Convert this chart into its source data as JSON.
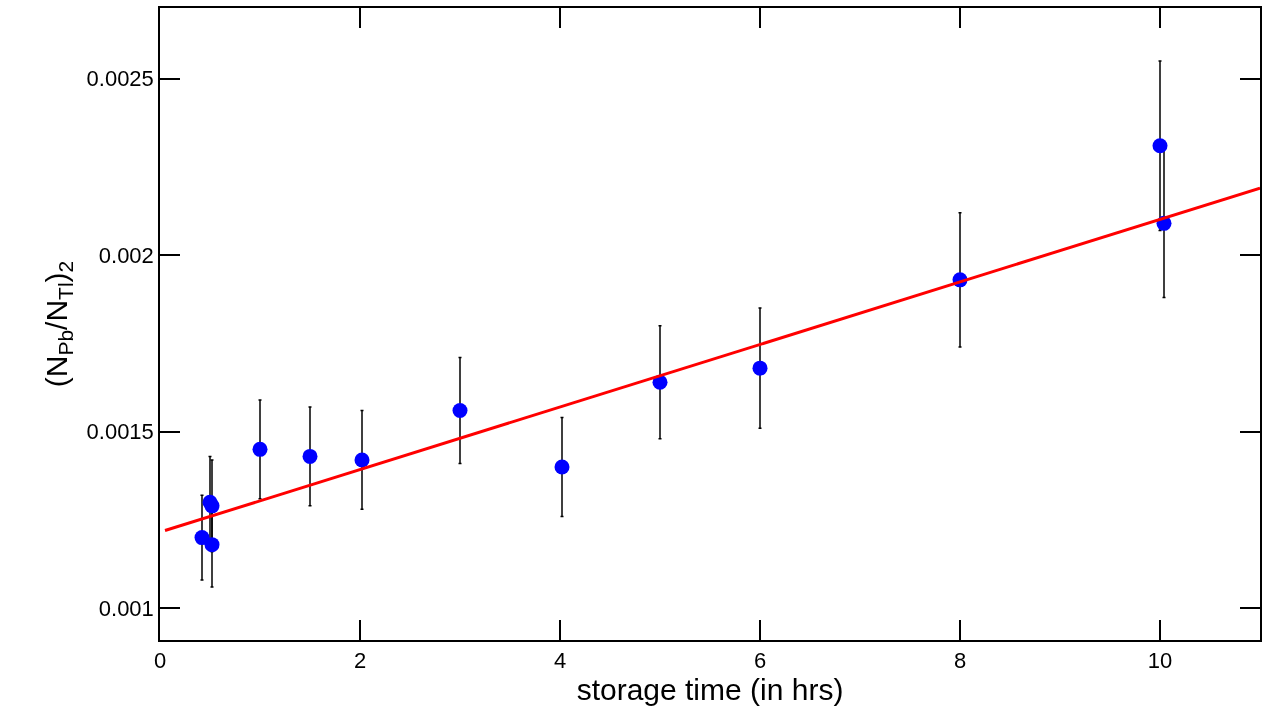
{
  "chart_data": {
    "type": "scatter",
    "xlabel": "storage time (in hrs)",
    "ylabel": "(N$_{Pb}$/N$_{Tl}$)$_{2}$",
    "xlim": [
      0,
      11
    ],
    "xticks": [
      0,
      2,
      4,
      6,
      8,
      10
    ],
    "ylim": [
      0.00091,
      0.0027
    ],
    "yticks": [
      0.001,
      0.0015,
      0.002,
      0.0025
    ],
    "grid": false,
    "series": [
      {
        "marker": "circle",
        "color": "#0000ff",
        "x": [
          0.42,
          0.5,
          0.52,
          0.52,
          1.0,
          1.5,
          2.02,
          3.0,
          4.02,
          5.0,
          6.0,
          8.0,
          10.0,
          10.04
        ],
        "values": [
          0.0012,
          0.0013,
          0.00129,
          0.00118,
          0.00145,
          0.00143,
          0.00142,
          0.00156,
          0.0014,
          0.00164,
          0.00168,
          0.00193,
          0.00231,
          0.00209
        ],
        "errors": [
          0.00012,
          0.00013,
          0.00013,
          0.00012,
          0.00014,
          0.00014,
          0.00014,
          0.00015,
          0.00014,
          0.00016,
          0.00017,
          0.00019,
          0.00024,
          0.00021
        ]
      },
      {
        "type": "line",
        "marker": "none",
        "color": "#ff0000",
        "x": [
          0.05,
          11
        ],
        "values": [
          0.00122,
          0.00219
        ],
        "line_style": "solid"
      }
    ]
  }
}
